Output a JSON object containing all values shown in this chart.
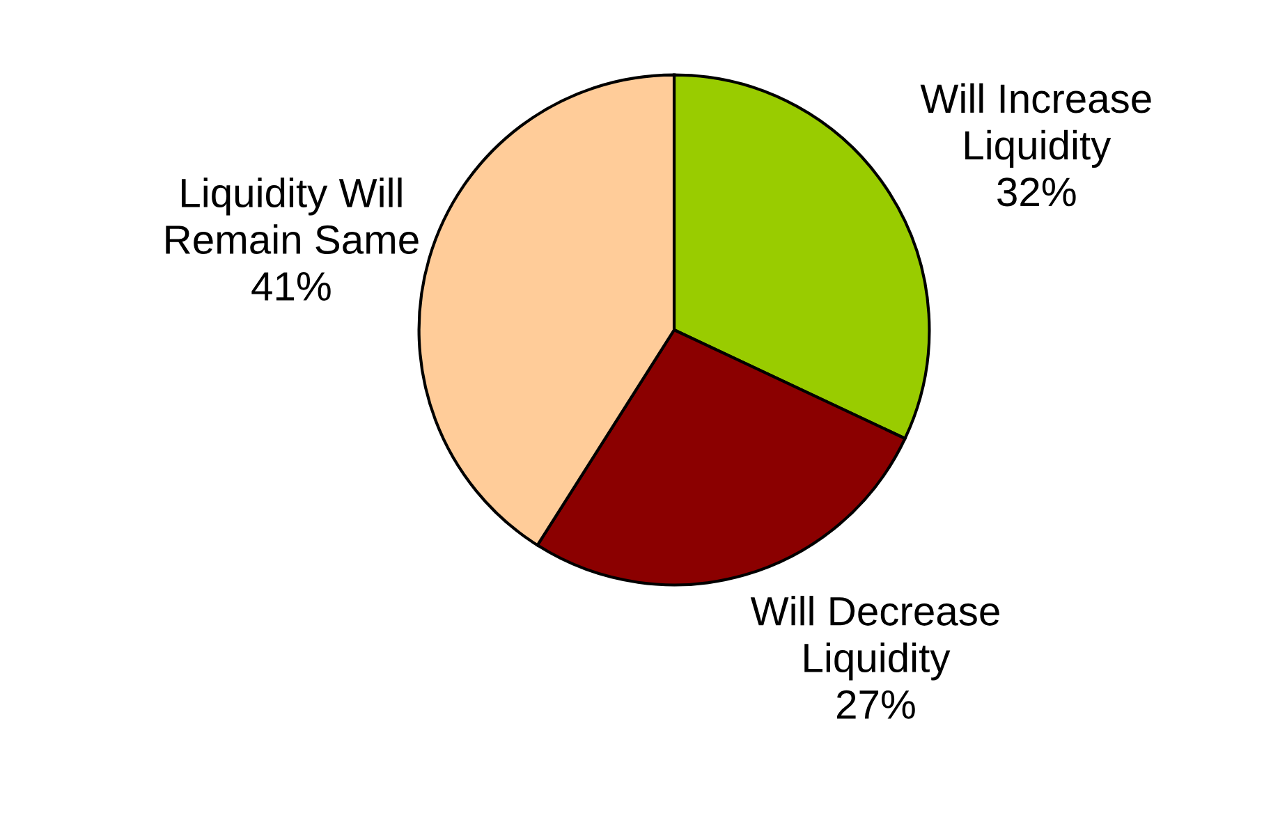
{
  "chart_data": {
    "type": "pie",
    "categories": [
      "Will Increase\nLiquidity",
      "Will Decrease\nLiquidity",
      "Liquidity Will\nRemain Same"
    ],
    "values": [
      32,
      27,
      41
    ],
    "value_labels": [
      "32%",
      "27%",
      "41%"
    ],
    "colors": [
      "#99cc00",
      "#8b0000",
      "#ffcc99"
    ]
  }
}
